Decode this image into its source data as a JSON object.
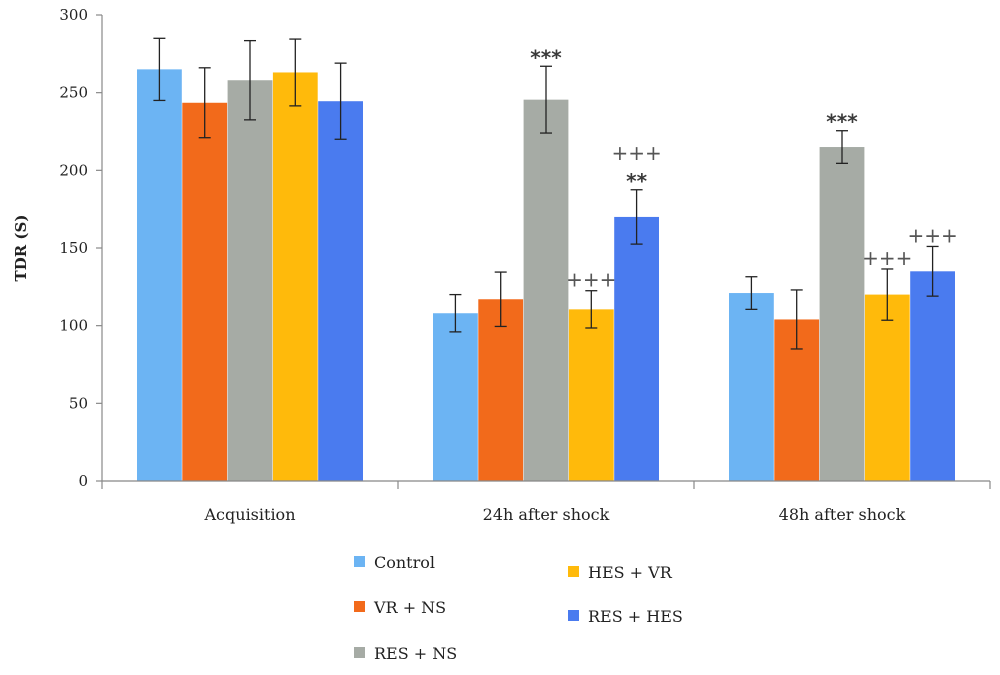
{
  "chart_data": {
    "type": "bar",
    "title": "",
    "xlabel": "",
    "ylabel": "TDR (S)",
    "ylim": [
      0,
      300
    ],
    "yticks": [
      0,
      50,
      100,
      150,
      200,
      250,
      300
    ],
    "grid": false,
    "legend_position": "bottom",
    "categories": [
      "Acquisition",
      "24h after shock",
      "48h after shock"
    ],
    "series": [
      {
        "name": "Control",
        "color": "#6cb4f3",
        "values": [
          265,
          108,
          121
        ],
        "errors": [
          20,
          12,
          10.5
        ]
      },
      {
        "name": "VR + NS",
        "color": "#f26a1b",
        "values": [
          243.5,
          117,
          104
        ],
        "errors": [
          22.5,
          17.5,
          19
        ]
      },
      {
        "name": "RES + NS",
        "color": "#a6aba5",
        "values": [
          258,
          245.5,
          215
        ],
        "errors": [
          25.5,
          21.5,
          10.5
        ]
      },
      {
        "name": "HES + VR",
        "color": "#ffba0b",
        "values": [
          263,
          110.5,
          120
        ],
        "errors": [
          21.5,
          12,
          16.5
        ]
      },
      {
        "name": "RES + HES",
        "color": "#4a7bef",
        "values": [
          244.5,
          170,
          135
        ],
        "errors": [
          24.5,
          17.5,
          16
        ]
      }
    ],
    "annotations": [
      {
        "category": 1,
        "series": 2,
        "text": "***",
        "style": "star"
      },
      {
        "category": 1,
        "series": 3,
        "text": "+++",
        "style": "plus"
      },
      {
        "category": 1,
        "series": 4,
        "text": "**",
        "style": "star"
      },
      {
        "category": 1,
        "series": 4,
        "text": "+++",
        "style": "plus"
      },
      {
        "category": 2,
        "series": 2,
        "text": "***",
        "style": "star"
      },
      {
        "category": 2,
        "series": 3,
        "text": "+++",
        "style": "plus"
      },
      {
        "category": 2,
        "series": 4,
        "text": "+++",
        "style": "plus"
      }
    ]
  }
}
